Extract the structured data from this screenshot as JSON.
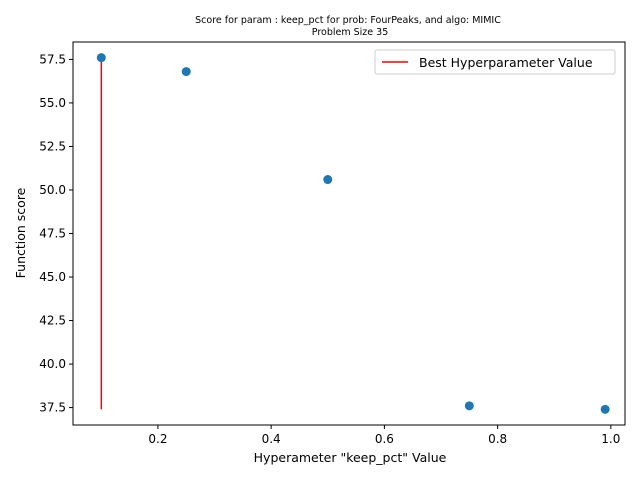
{
  "chart_data": {
    "type": "scatter",
    "title_line1": "Score for param : keep_pct for prob: FourPeaks, and algo: MIMIC",
    "title_line2": "Problem Size 35",
    "xlabel": "Hyperameter \"keep_pct\" Value",
    "ylabel": "Function score",
    "xlim": [
      0.05,
      1.025
    ],
    "ylim": [
      36.5,
      58.5
    ],
    "x_ticks": [
      {
        "v": 0.2,
        "label": "0.2"
      },
      {
        "v": 0.4,
        "label": "0.4"
      },
      {
        "v": 0.6,
        "label": "0.6"
      },
      {
        "v": 0.8,
        "label": "0.8"
      },
      {
        "v": 1.0,
        "label": "1.0"
      }
    ],
    "y_ticks": [
      {
        "v": 37.5,
        "label": "37.5"
      },
      {
        "v": 40.0,
        "label": "40.0"
      },
      {
        "v": 42.5,
        "label": "42.5"
      },
      {
        "v": 45.0,
        "label": "45.0"
      },
      {
        "v": 47.5,
        "label": "47.5"
      },
      {
        "v": 50.0,
        "label": "50.0"
      },
      {
        "v": 52.5,
        "label": "52.5"
      },
      {
        "v": 55.0,
        "label": "55.0"
      },
      {
        "v": 57.5,
        "label": "57.5"
      }
    ],
    "points": [
      {
        "x": 0.1,
        "y": 57.6
      },
      {
        "x": 0.25,
        "y": 56.8
      },
      {
        "x": 0.5,
        "y": 50.6
      },
      {
        "x": 0.75,
        "y": 37.6
      },
      {
        "x": 0.99,
        "y": 37.4
      }
    ],
    "best_line": {
      "x": 0.1,
      "y_start": 37.4,
      "y_end": 57.6,
      "label": "Best Hyperparameter Value",
      "color": "#ff0000"
    },
    "point_color": "#1f77b4",
    "legend_position": "upper right",
    "grid": false
  }
}
